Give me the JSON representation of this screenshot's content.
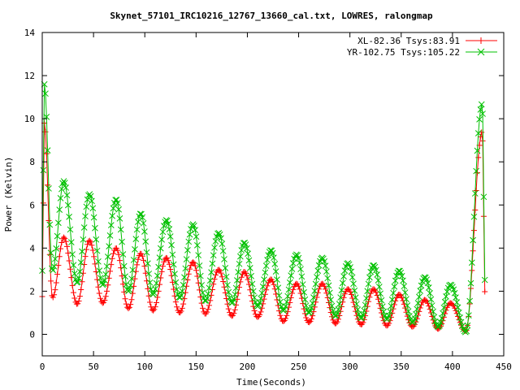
{
  "chart_data": {
    "type": "line",
    "title": "Skynet_57101_IRC10216_12767_13660_cal.txt, LOWRES, ralongmap",
    "xlabel": "Time(Seconds)",
    "ylabel": "Power (Kelvin)",
    "xlim": [
      0,
      450
    ],
    "ylim": [
      -1,
      14
    ],
    "xticks": [
      0,
      50,
      100,
      150,
      200,
      250,
      300,
      350,
      400,
      450
    ],
    "yticks": [
      0,
      2,
      4,
      6,
      8,
      10,
      12,
      14
    ],
    "grid": false,
    "legend_position": "top-right",
    "series": [
      {
        "name": "XL-82.36 Tsys:83.91",
        "color": "#ff0000",
        "marker": "plus",
        "peaks": [
          [
            2,
            9.8
          ],
          [
            21,
            4.5
          ],
          [
            46,
            4.35
          ],
          [
            72,
            4.0
          ],
          [
            96,
            3.75
          ],
          [
            121,
            3.55
          ],
          [
            147,
            3.35
          ],
          [
            172,
            3.0
          ],
          [
            197,
            2.9
          ],
          [
            223,
            2.55
          ],
          [
            248,
            2.35
          ],
          [
            273,
            2.35
          ],
          [
            298,
            2.1
          ],
          [
            323,
            2.1
          ],
          [
            348,
            1.85
          ],
          [
            373,
            1.6
          ],
          [
            398,
            1.45
          ],
          [
            429,
            9.4
          ]
        ],
        "troughs": [
          [
            0,
            1.75
          ],
          [
            10,
            1.7
          ],
          [
            34,
            1.4
          ],
          [
            59,
            1.45
          ],
          [
            84,
            1.2
          ],
          [
            108,
            1.1
          ],
          [
            134,
            1.0
          ],
          [
            159,
            0.95
          ],
          [
            185,
            0.85
          ],
          [
            210,
            0.8
          ],
          [
            235,
            0.6
          ],
          [
            260,
            0.55
          ],
          [
            286,
            0.5
          ],
          [
            311,
            0.45
          ],
          [
            336,
            0.4
          ],
          [
            361,
            0.35
          ],
          [
            386,
            0.25
          ],
          [
            413,
            0.15
          ],
          [
            432,
            1.55
          ]
        ]
      },
      {
        "name": "YR-102.75 Tsys:105.22",
        "color": "#00c000",
        "marker": "cross",
        "peaks": [
          [
            2,
            11.6
          ],
          [
            21,
            7.1
          ],
          [
            46,
            6.5
          ],
          [
            72,
            6.25
          ],
          [
            96,
            5.6
          ],
          [
            121,
            5.3
          ],
          [
            147,
            5.1
          ],
          [
            172,
            4.7
          ],
          [
            197,
            4.25
          ],
          [
            223,
            3.9
          ],
          [
            248,
            3.7
          ],
          [
            273,
            3.55
          ],
          [
            298,
            3.3
          ],
          [
            323,
            3.2
          ],
          [
            348,
            2.95
          ],
          [
            373,
            2.65
          ],
          [
            398,
            2.3
          ],
          [
            429,
            10.7
          ]
        ],
        "troughs": [
          [
            0,
            2.95
          ],
          [
            10,
            2.95
          ],
          [
            34,
            2.4
          ],
          [
            59,
            2.3
          ],
          [
            84,
            2.0
          ],
          [
            108,
            1.85
          ],
          [
            134,
            1.7
          ],
          [
            159,
            1.55
          ],
          [
            185,
            1.45
          ],
          [
            210,
            1.3
          ],
          [
            235,
            1.1
          ],
          [
            260,
            1.0
          ],
          [
            286,
            0.85
          ],
          [
            311,
            0.75
          ],
          [
            336,
            0.7
          ],
          [
            361,
            0.55
          ],
          [
            386,
            0.35
          ],
          [
            413,
            0.1
          ],
          [
            432,
            2.05
          ]
        ]
      }
    ]
  }
}
